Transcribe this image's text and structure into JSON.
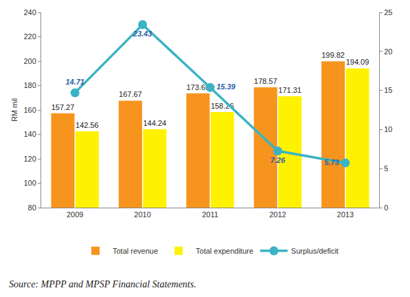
{
  "chart_data": {
    "type": "bar",
    "y_label": "RM mil",
    "categories": [
      "2009",
      "2010",
      "2011",
      "2012",
      "2013"
    ],
    "series": [
      {
        "name": "Total revenue",
        "type": "bar",
        "color": "#f7941d",
        "values": [
          157.27,
          167.67,
          173.65,
          178.57,
          199.82
        ]
      },
      {
        "name": "Total expenditure",
        "type": "bar",
        "color": "#fff200",
        "values": [
          142.56,
          144.24,
          158.26,
          171.31,
          194.09
        ]
      },
      {
        "name": "Surplus/deficit",
        "type": "line",
        "axis": "y2",
        "color": "#3bb3c4",
        "marker": "circle",
        "values": [
          14.71,
          23.43,
          15.39,
          7.26,
          5.73
        ]
      }
    ],
    "ylim": [
      80,
      240
    ],
    "yticks": [
      80,
      100,
      120,
      140,
      160,
      180,
      200,
      220,
      240
    ],
    "y2lim": [
      0,
      25
    ],
    "y2ticks": [
      0,
      5,
      10,
      15,
      20,
      25
    ],
    "data_labels": true,
    "legend": "bottom",
    "grid": false,
    "source": "Source: MPPP and MPSP Financial Statements."
  }
}
